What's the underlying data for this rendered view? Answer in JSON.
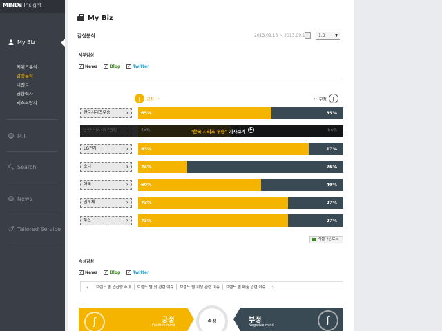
{
  "brand": {
    "name": "MINDs",
    "sub": " Insight"
  },
  "sidebar": {
    "items": [
      {
        "label": "My Biz",
        "icon": "user-icon"
      },
      {
        "label": "M.I",
        "icon": "globe-icon"
      },
      {
        "label": "Search",
        "icon": "search-icon"
      },
      {
        "label": "News",
        "icon": "globe-icon"
      },
      {
        "label": "Tailored Service",
        "icon": "rocket-icon"
      }
    ],
    "sub_items": [
      {
        "label": "키워드분석"
      },
      {
        "label": "감성분석"
      },
      {
        "label": "이벤트"
      },
      {
        "label": "영향력자"
      },
      {
        "label": "리스크탐지"
      }
    ]
  },
  "page": {
    "title": "My Biz"
  },
  "analysis": {
    "title": "감성분석",
    "date_range": "2013.09.15 ~ 2013.09.18",
    "select_value": "1.0"
  },
  "detail_section": {
    "title": "세부감성",
    "filters": [
      {
        "label": "News",
        "checked": "✓"
      },
      {
        "label": "Blog",
        "checked": "✓"
      },
      {
        "label": "Twitter",
        "checked": "✓"
      }
    ]
  },
  "legend": {
    "positive": "긍정",
    "positive_arrow": "››",
    "negative": "부정",
    "negative_arrow": "‹‹"
  },
  "chart_data": {
    "type": "bar",
    "stacked": true,
    "orientation": "horizontal",
    "categories": [
      "한국시리즈우승",
      "한국시리즈4회우승팀",
      "LG전자",
      "소니",
      "애국",
      "반도체",
      "두산"
    ],
    "series": [
      {
        "name": "긍정",
        "values": [
          65,
          45,
          83,
          24,
          60,
          73,
          73
        ],
        "labels": [
          "65%",
          "45%",
          "83%",
          "24%",
          "60%",
          "73%",
          "73%"
        ]
      },
      {
        "name": "부정",
        "values": [
          35,
          55,
          17,
          76,
          40,
          27,
          27
        ],
        "labels": [
          "35%",
          "55%",
          "17%",
          "76%",
          "40%",
          "27%",
          "27%"
        ]
      }
    ],
    "tooltip": {
      "keyword": "\"한국 시리즈 우승\"",
      "text": " 기사보기",
      "play": "▶"
    },
    "colors": {
      "positive": "#f5b400",
      "negative": "#3a4a55"
    }
  },
  "excel_button": "엑셀다운로드",
  "attr_section": {
    "title": "속성감성",
    "filters": [
      {
        "label": "News",
        "checked": "✓"
      },
      {
        "label": "Blog",
        "checked": "✓"
      },
      {
        "label": "Twitter",
        "checked": "✓"
      }
    ],
    "issues": [
      "브랜드 별 언급량 추이",
      "브랜드 별 핫 관련 이슈",
      "브랜드 별 위생 관련 이슈",
      "브랜드 별 매출 관련 이슈"
    ],
    "prev_arrow": "‹",
    "next_arrow": "›"
  },
  "banner": {
    "positive_title": "긍정",
    "positive_sub": "Positive mind",
    "center": "속성",
    "negative_title": "부정",
    "negative_sub": "Negative mind"
  }
}
